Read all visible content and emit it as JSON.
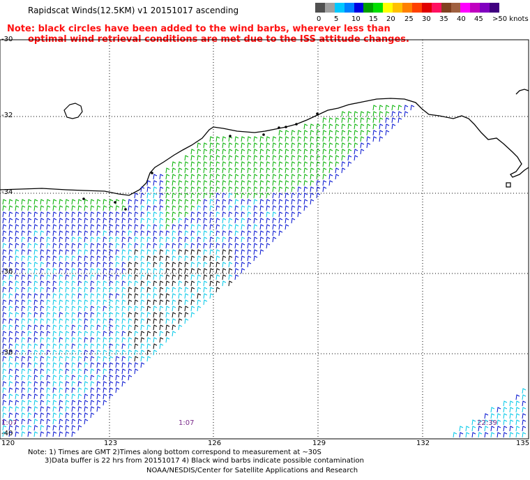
{
  "title": "Rapidscat Winds(12.5KM) v1 20151017 ascending",
  "note": {
    "line1": "Note: black circles have been added to the wind barbs, wherever less than",
    "line2": "optimal wind retrieval conditions are met due to the ISS attitude changes."
  },
  "legend": {
    "labels": [
      "0",
      "5",
      "10",
      "15",
      "20",
      "25",
      "30",
      "35",
      "40",
      "45",
      ">50 knots"
    ],
    "colors": [
      "#505050",
      "#a0a0a0",
      "#00c8ff",
      "#0080ff",
      "#0000e0",
      "#00a000",
      "#00e000",
      "#ffff00",
      "#ffc000",
      "#ff8000",
      "#ff4000",
      "#e00000",
      "#ff1060",
      "#804020",
      "#a06040",
      "#ff00ff",
      "#c000c0",
      "#8000c0",
      "#400080"
    ]
  },
  "lat_labels": [
    "-30",
    "-32",
    "-34",
    "-36",
    "-38",
    "-40"
  ],
  "lon_labels": [
    "120",
    "123",
    "126",
    "129",
    "132",
    "135"
  ],
  "time_labels": [
    "1:07",
    "1:07",
    "22:39"
  ],
  "footer": {
    "line1": "Note: 1) Times are GMT 2)Times along bottom correspond to measurement at ~30S",
    "line2": "3)Data buffer is 22 hrs from 20151017 4) Black wind barbs indicate possible contamination",
    "line3": "NOAA/NESDIS/Center for Satellite Applications and Research"
  },
  "wind_colors": {
    "green": "#00b000",
    "blue": "#0010d0",
    "lightblue": "#00c8e8",
    "black": "#000000"
  }
}
